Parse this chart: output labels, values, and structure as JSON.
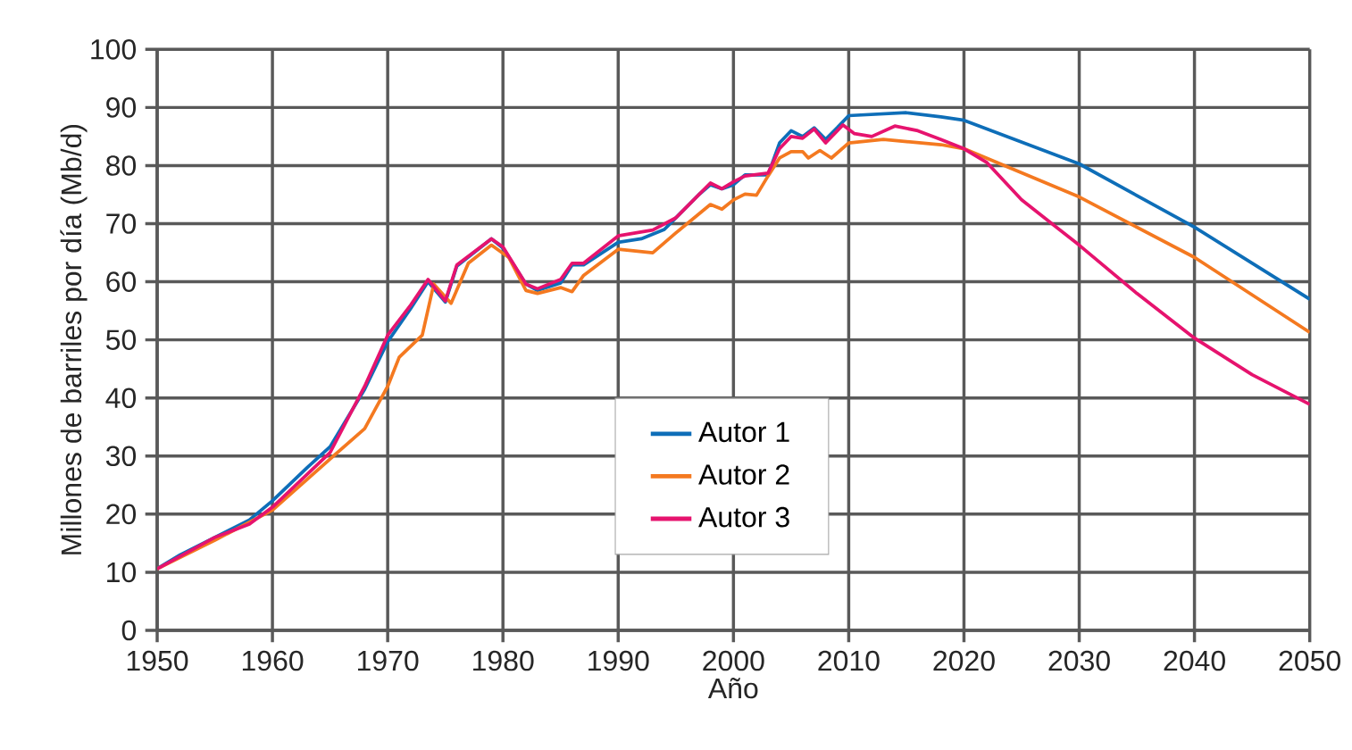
{
  "chart_data": {
    "type": "line",
    "xlabel": "Año",
    "ylabel": "Millones de barriles por día (Mb/d)",
    "xlim": [
      1950,
      2050
    ],
    "ylim": [
      0,
      100
    ],
    "xticks": [
      1950,
      1960,
      1970,
      1980,
      1990,
      2000,
      2010,
      2020,
      2030,
      2040,
      2050
    ],
    "yticks": [
      0,
      10,
      20,
      30,
      40,
      50,
      60,
      70,
      80,
      90,
      100
    ],
    "grid": true,
    "legend": "bottom",
    "marker": "none",
    "line_style": "solid",
    "series": [
      {
        "name": "Autor 1",
        "color": "#0e6eb8",
        "x": [
          1950,
          1952,
          1955,
          1958,
          1960,
          1963,
          1965,
          1968,
          1970,
          1972,
          1973.5,
          1975,
          1976,
          1979,
          1980,
          1982,
          1983,
          1985,
          1986,
          1987,
          1990,
          1992,
          1994,
          1997,
          1998,
          1999,
          2000,
          2001,
          2003,
          2004,
          2005,
          2006,
          2007,
          2008,
          2009,
          2010,
          2015,
          2018,
          2020,
          2030,
          2040,
          2050
        ],
        "values": [
          10.6,
          13,
          16,
          19,
          22.3,
          28,
          31.6,
          41.5,
          49.7,
          55.4,
          60,
          56.5,
          62.7,
          67.4,
          65.8,
          59.6,
          58.5,
          59.8,
          62.9,
          62.9,
          66.8,
          67.4,
          69,
          75,
          76.7,
          76,
          76.7,
          78.4,
          78.4,
          83.9,
          86,
          85,
          86.5,
          84.5,
          86.5,
          88.6,
          89.1,
          88.4,
          87.8,
          80.3,
          69.4,
          57
        ]
      },
      {
        "name": "Autor 2",
        "color": "#f47920",
        "x": [
          1950,
          1955,
          1960,
          1965,
          1968,
          1970,
          1971,
          1973,
          1974,
          1975.5,
          1977,
          1979,
          1980.5,
          1982,
          1983,
          1985,
          1986,
          1987,
          1990,
          1993,
          1995,
          1998,
          1999,
          2000,
          2001,
          2002,
          2003,
          2004,
          2005,
          2006,
          2006.5,
          2007.5,
          2008.5,
          2010,
          2013,
          2018,
          2020,
          2030,
          2040,
          2050
        ],
        "values": [
          10.6,
          15.5,
          20.7,
          29.5,
          34.7,
          42,
          47,
          50.8,
          59.6,
          56.3,
          63.2,
          66.3,
          64.2,
          58.5,
          58,
          59,
          58.3,
          61.1,
          65.6,
          65,
          68.4,
          73.3,
          72.5,
          74.1,
          75.1,
          74.9,
          78.2,
          81.3,
          82.4,
          82.4,
          81.3,
          82.6,
          81.3,
          83.9,
          84.5,
          83.6,
          82.9,
          74.6,
          64.2,
          51.3
        ]
      },
      {
        "name": "Autor 3",
        "color": "#e6136e",
        "x": [
          1950,
          1955,
          1958,
          1960,
          1965,
          1968,
          1970,
          1972,
          1973.5,
          1975,
          1976,
          1979,
          1980,
          1982,
          1983,
          1985,
          1986,
          1987,
          1990,
          1993,
          1995,
          1998,
          1999,
          2000,
          2001,
          2003,
          2004,
          2005,
          2006,
          2007,
          2008,
          2009.5,
          2010.5,
          2012,
          2014,
          2016,
          2018,
          2020,
          2022,
          2025,
          2030,
          2035,
          2040,
          2045,
          2050
        ],
        "values": [
          10.6,
          16,
          18.3,
          21.2,
          30.6,
          42,
          50.8,
          56,
          60.4,
          56.7,
          62.9,
          67.4,
          66,
          59.6,
          58.8,
          60.4,
          63.2,
          63.2,
          67.9,
          68.9,
          71,
          77,
          76,
          77.2,
          78.2,
          78.7,
          82.9,
          85,
          84.7,
          86.3,
          83.9,
          87,
          85.5,
          85,
          86.8,
          86,
          84.5,
          82.9,
          80.5,
          74.1,
          66.3,
          58,
          50.3,
          44,
          38.9
        ]
      }
    ]
  }
}
